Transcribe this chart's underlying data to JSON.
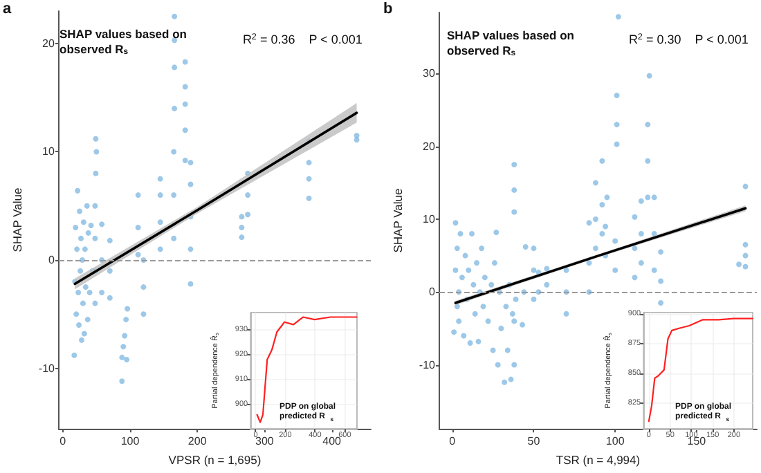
{
  "chart_data": [
    {
      "type": "scatter",
      "title": "SHAP values based on observed R$_{s}$",
      "xlabel": "VPSR (n = 1,695)",
      "ylabel": "SHAP Value",
      "annotations": [
        "a",
        "R$^{2}$ = 0.36    P < 0.001"
      ],
      "xlim": [
        -6,
        458
      ],
      "ylim": [
        -15.6,
        23
      ],
      "xticks": [
        0,
        100,
        200,
        300,
        400
      ],
      "yticks": [
        -10,
        0,
        10,
        20
      ],
      "grid": false,
      "marker": "circle",
      "ref_lines": [
        {
          "axis": "y",
          "value": 0,
          "color": "#9a9a9a",
          "line_style": "dashed"
        }
      ],
      "series": [
        {
          "color": "#5ba3d9",
          "x": [
            17,
            18,
            19,
            20,
            21,
            22,
            23,
            24,
            25,
            26,
            27,
            28,
            29,
            30,
            31,
            32,
            33,
            34,
            36,
            37,
            38,
            40,
            42,
            44,
            48,
            48,
            48,
            48,
            49,
            49,
            50,
            58,
            58,
            58,
            70,
            70,
            70,
            88,
            88,
            90,
            92,
            94,
            96,
            95,
            112,
            112,
            112,
            120,
            120,
            120,
            145,
            145,
            145,
            145,
            165,
            165,
            165,
            166,
            166,
            166,
            166,
            182,
            182,
            182,
            182,
            182,
            190,
            190,
            190,
            190,
            190,
            266,
            266,
            266,
            275,
            275,
            275,
            366,
            366,
            366,
            366,
            437,
            437
          ],
          "values": [
            -8.8,
            -2,
            3,
            -5,
            1,
            6.4,
            -3,
            -6,
            4.5,
            -1,
            2,
            -7.4,
            0,
            -4,
            3.5,
            -6.8,
            1,
            -2.5,
            5,
            -5.5,
            2.5,
            -3,
            3.2,
            -1,
            -4,
            -1,
            2,
            5,
            8,
            11.2,
            10,
            -3,
            0,
            3.3,
            -3.5,
            -1,
            1.8,
            -11.2,
            -9,
            -8,
            -7,
            -5.5,
            -4.5,
            -9.2,
            0.5,
            3,
            6,
            -5,
            -2.5,
            0,
            1,
            3.5,
            6,
            7.5,
            2,
            6,
            10,
            14,
            17.8,
            20.3,
            22.5,
            9.2,
            12,
            14.4,
            16,
            18.3,
            -2.2,
            1,
            4,
            7,
            9,
            2.1,
            3,
            4,
            4.2,
            6,
            8,
            5.7,
            7.5,
            9,
            11,
            11.1,
            11.5
          ]
        },
        {
          "type": "line",
          "color": "#000000",
          "marker": "none",
          "x": [
            18,
            200,
            437
          ],
          "values": [
            -2.2,
            4.6,
            13.6
          ],
          "lower": [
            -2.7,
            4.3,
            12.7
          ],
          "upper": [
            -1.7,
            4.9,
            14.5
          ]
        }
      ]
    },
    {
      "type": "scatter",
      "title": "SHAP values based on observed R$_{s}$",
      "xlabel": "TSR (n = 4,994)",
      "ylabel": "SHAP Value",
      "annotations": [
        "b",
        "R$^{2}$ = 0.30    P < 0.001"
      ],
      "xlim": [
        -8,
        187
      ],
      "ylim": [
        -18.8,
        38.4
      ],
      "xticks": [
        0,
        50,
        100,
        150
      ],
      "yticks": [
        -10,
        0,
        10,
        20,
        30
      ],
      "grid": false,
      "marker": "circle",
      "ref_lines": [
        {
          "axis": "y",
          "value": 0,
          "color": "#9a9a9a",
          "line_style": "dashed"
        }
      ],
      "series": [
        {
          "color": "#5ba3d9",
          "x": [
            1,
            2,
            2,
            3,
            3,
            4,
            4,
            5,
            6,
            7,
            8,
            9,
            10,
            11,
            12,
            13,
            14,
            15,
            16,
            17,
            18,
            19,
            20,
            22,
            24,
            25,
            26,
            27,
            28,
            29,
            30,
            32,
            33,
            34,
            35,
            36,
            37,
            38,
            38,
            38,
            38,
            38,
            39,
            43,
            44,
            45,
            50,
            50,
            50,
            53,
            53,
            58,
            58,
            70,
            70,
            70,
            84,
            84,
            84,
            88,
            88,
            88,
            92,
            92,
            92,
            94,
            94,
            95,
            100,
            100,
            101,
            101,
            101,
            102,
            112,
            112,
            112,
            116,
            116,
            116,
            120,
            120,
            120,
            121,
            124,
            124,
            124,
            128,
            128,
            128,
            176,
            180,
            180,
            180,
            180
          ],
          "values": [
            -5.5,
            9.5,
            3,
            -2,
            6,
            0,
            -4,
            8,
            2,
            -6,
            5,
            -1,
            3,
            -7,
            8,
            1,
            -3,
            4,
            -6.8,
            0,
            6,
            -2,
            2,
            -4,
            1,
            -8,
            4,
            8.2,
            -10,
            0,
            -5,
            -12.4,
            -2,
            -8,
            1,
            -12,
            -3,
            11,
            14,
            17.5,
            -10,
            -4,
            -1,
            -4.5,
            0,
            6.2,
            -1,
            3,
            6,
            0,
            2.7,
            1,
            3.2,
            -3,
            0,
            3,
            0,
            4,
            9.5,
            6,
            10,
            15,
            8,
            12,
            18,
            5,
            9,
            13,
            3,
            7,
            20.3,
            23,
            27,
            37.8,
            2,
            6,
            10.3,
            4,
            8,
            12.5,
            13,
            18,
            23,
            29.7,
            3,
            8,
            13,
            -1.5,
            1.5,
            5.5,
            3.8,
            3.5,
            5,
            6.5,
            14.5
          ]
        },
        {
          "type": "line",
          "color": "#000000",
          "marker": "none",
          "x": [
            2,
            90,
            180
          ],
          "values": [
            -1.5,
            5,
            11.5
          ],
          "lower": [
            -1.8,
            4.8,
            11.1
          ],
          "upper": [
            -1.2,
            5.2,
            11.9
          ]
        }
      ]
    },
    {
      "type": "line",
      "ylabel": "Partial dependence R̂$_{s}$",
      "annotations": [
        "PDP on global predicted R$_{s}$"
      ],
      "xlim": [
        -34,
        682
      ],
      "ylim": [
        890.4,
        936.8
      ],
      "xticks": [
        0,
        200,
        400,
        600
      ],
      "yticks": [
        900,
        910,
        920,
        930
      ],
      "grid": true,
      "series": [
        {
          "color": "#ff2020",
          "x": [
            10,
            31,
            49,
            78,
            110,
            143,
            194,
            254,
            319,
            397,
            502,
            600,
            680
          ],
          "values": [
            896,
            893,
            896,
            918,
            922,
            929,
            933,
            932,
            935,
            934,
            935,
            935,
            935
          ]
        }
      ]
    },
    {
      "type": "line",
      "ylabel": "Partial dependence R̂$_{s}$",
      "annotations": [
        "PDP on global predicted R$_{s}$"
      ],
      "xlim": [
        -12.6,
        244
      ],
      "ylim": [
        803.7,
        901
      ],
      "xticks": [
        0,
        50,
        100,
        150,
        200
      ],
      "yticks": [
        825,
        850,
        875,
        900
      ],
      "grid": true,
      "series": [
        {
          "color": "#ff2020",
          "x": [
            0,
            6.6,
            13.8,
            22,
            35.7,
            40,
            44.9,
            54,
            72.3,
            95,
            127,
            164,
            200,
            244
          ],
          "values": [
            810,
            823,
            846,
            848,
            853,
            865,
            879,
            886,
            888,
            890,
            895,
            895,
            896,
            896
          ]
        }
      ]
    }
  ]
}
